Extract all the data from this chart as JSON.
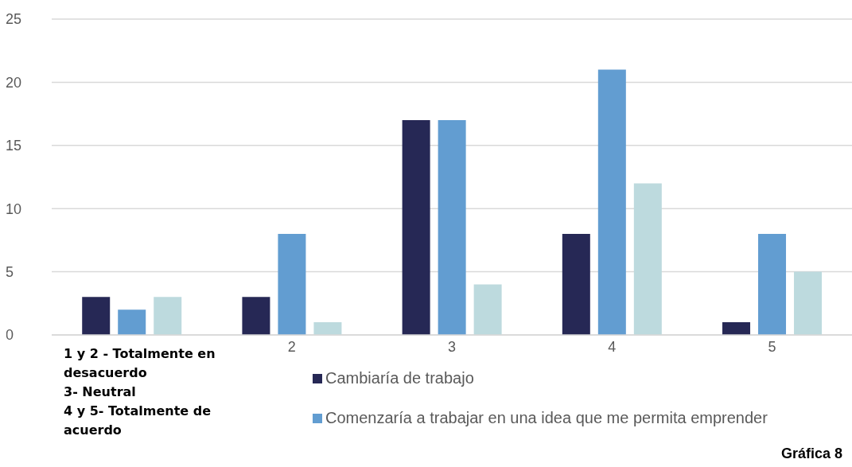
{
  "chart_data": {
    "type": "bar",
    "categories": [
      null,
      "2",
      "3",
      "4",
      "5"
    ],
    "series": [
      {
        "name": "Cambiaría de trabajo",
        "color": "#262855",
        "values": [
          3,
          3,
          17,
          8,
          1
        ]
      },
      {
        "name": "Comenzaría a trabajar en una idea que me permita emprender",
        "color": "#629dd1",
        "values": [
          2,
          8,
          17,
          21,
          8
        ]
      },
      {
        "color": "#bddade",
        "values": [
          3,
          1,
          4,
          12,
          5
        ]
      }
    ],
    "ylim": [
      0,
      25
    ],
    "yticks": [
      0,
      5,
      10,
      15,
      20,
      25
    ],
    "grid": "y",
    "legend": "bottom",
    "annotations": [
      "1 y 2 - Totalmente en desacuerdo",
      "3- Neutral",
      "4 y 5- Totalmente de acuerdo",
      "Gráfica 8"
    ]
  }
}
